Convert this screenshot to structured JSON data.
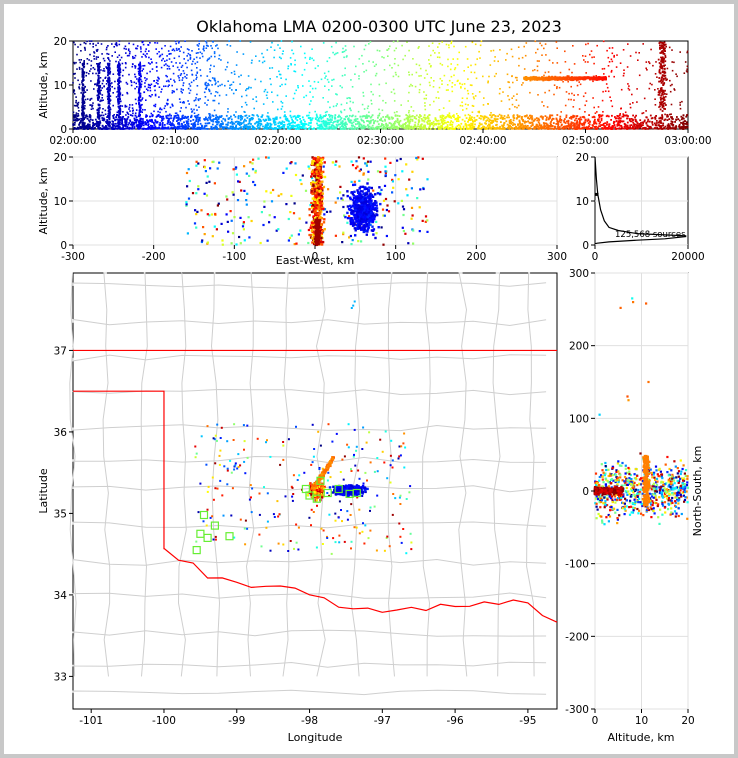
{
  "title": "Oklahoma LMA 0200-0300 UTC June 23, 2023",
  "colors": {
    "state_border": "#ff0000",
    "county_lines": "#c8c8c8",
    "stations": "#66ee33",
    "background": "#ffffff"
  },
  "chart_data": [
    {
      "id": "time_height",
      "type": "scatter",
      "ylabel": "Altitude, km",
      "ylim": [
        0,
        20
      ],
      "yticks": [
        0,
        10,
        20
      ],
      "xticks": [
        "02:00:00",
        "02:10:00",
        "02:20:00",
        "02:30:00",
        "02:40:00",
        "02:50:00",
        "03:00:00"
      ],
      "xlim_minutes": [
        0,
        60
      ],
      "color_encoding": "time (jet colormap)",
      "features": {
        "dense_low_band_km": [
          0,
          3
        ],
        "horizontal_layer": {
          "t_minutes": [
            44,
            52
          ],
          "alt_km": 11.5
        },
        "early_vertical_spikes_minutes": [
          1,
          2.5,
          3.5,
          4.5,
          6.5
        ]
      }
    },
    {
      "id": "ew_height",
      "type": "scatter",
      "xlabel": "East-West, km",
      "ylabel": "Altitude, km",
      "xlim": [
        -300,
        300
      ],
      "ylim": [
        0,
        20
      ],
      "xticks": [
        -300,
        -200,
        -100,
        0,
        100,
        200,
        300
      ],
      "yticks": [
        0,
        10,
        20
      ],
      "clusters": [
        {
          "x_km": 60,
          "width_km": 30,
          "alt_km": [
            0,
            16
          ],
          "color": "blue"
        },
        {
          "x_km": 0,
          "width_km": 15,
          "alt_km": [
            0,
            20
          ],
          "color": "orange-red"
        }
      ]
    },
    {
      "id": "altitude_histogram",
      "type": "line",
      "xlim": [
        0,
        20000
      ],
      "ylim": [
        0,
        20
      ],
      "xticks": [
        0,
        20000
      ],
      "yticks": [
        0,
        10,
        20
      ],
      "annotation": "125,568 sources"
    },
    {
      "id": "plan_view",
      "type": "scatter",
      "xlabel": "Longitude",
      "ylabel": "Latitude",
      "xlim": [
        -101.25,
        -94.6
      ],
      "ylim": [
        32.6,
        37.95
      ],
      "xticks": [
        -101,
        -100,
        -99,
        -98,
        -97,
        -96,
        -95
      ],
      "yticks": [
        33,
        34,
        35,
        36,
        37
      ],
      "stations": [
        [
          -99.45,
          34.98
        ],
        [
          -99.5,
          34.75
        ],
        [
          -99.4,
          34.7
        ],
        [
          -99.55,
          34.55
        ],
        [
          -99.3,
          34.85
        ],
        [
          -99.1,
          34.72
        ],
        [
          -98.05,
          35.3
        ],
        [
          -98.0,
          35.22
        ],
        [
          -97.9,
          35.18
        ],
        [
          -97.75,
          35.25
        ],
        [
          -97.6,
          35.3
        ],
        [
          -97.45,
          35.24
        ],
        [
          -97.35,
          35.25
        ],
        [
          -97.85,
          35.4
        ]
      ],
      "clusters": [
        {
          "lon": -97.4,
          "lat": 35.28,
          "color": "blue"
        },
        {
          "lon": -97.9,
          "lat": 35.35,
          "color": "orange-red"
        }
      ]
    },
    {
      "id": "ns_height",
      "type": "scatter",
      "xlabel": "Altitude, km",
      "ylabel": "North-South, km",
      "xlim": [
        0,
        20
      ],
      "ylim": [
        -300,
        300
      ],
      "xticks": [
        0,
        10,
        20
      ],
      "yticks": [
        -300,
        -200,
        -100,
        0,
        100,
        200,
        300
      ]
    }
  ]
}
